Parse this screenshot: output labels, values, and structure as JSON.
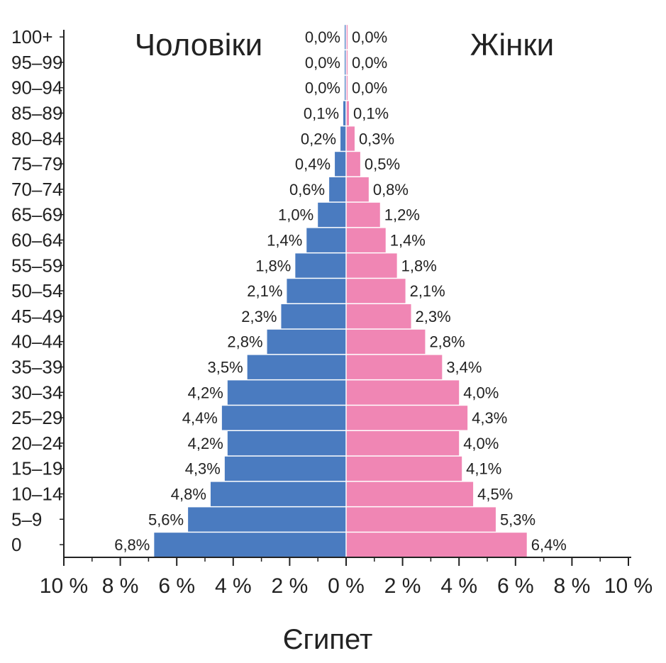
{
  "chart_data": {
    "type": "bar",
    "orientation": "horizontal-population-pyramid",
    "title": "Єгипет",
    "left_label": "Чоловіки",
    "right_label": "Жінки",
    "tick_labels": [
      "10 %",
      "8 %",
      "6 %",
      "4 %",
      "2 %",
      "0 %",
      "2 %",
      "4 %",
      "6 %",
      "8 %",
      "10 %"
    ],
    "xlim": [
      -10,
      10
    ],
    "categories": [
      "0",
      "5–9",
      "10–14",
      "15–19",
      "20–24",
      "25–29",
      "30–34",
      "35–39",
      "40–44",
      "45–49",
      "50–54",
      "55–59",
      "60–64",
      "65–69",
      "70–74",
      "75–79",
      "80–84",
      "85–89",
      "90–94",
      "95–99",
      "100+"
    ],
    "series": [
      {
        "name": "Чоловіки",
        "color": "#4a7bc0",
        "values": [
          6.8,
          5.6,
          4.8,
          4.3,
          4.2,
          4.4,
          4.2,
          3.5,
          2.8,
          2.3,
          2.1,
          1.8,
          1.4,
          1.0,
          0.6,
          0.4,
          0.2,
          0.1,
          0.0,
          0.0,
          0.0
        ],
        "labels": [
          "6,8%",
          "5,6%",
          "4,8%",
          "4,3%",
          "4,2%",
          "4,4%",
          "4,2%",
          "3,5%",
          "2,8%",
          "2,3%",
          "2,1%",
          "1,8%",
          "1,4%",
          "1,0%",
          "0,6%",
          "0,4%",
          "0,2%",
          "0,1%",
          "0,0%",
          "0,0%",
          "0,0%"
        ]
      },
      {
        "name": "Жінки",
        "color": "#f086b4",
        "values": [
          6.4,
          5.3,
          4.5,
          4.1,
          4.0,
          4.3,
          4.0,
          3.4,
          2.8,
          2.3,
          2.1,
          1.8,
          1.4,
          1.2,
          0.8,
          0.5,
          0.3,
          0.1,
          0.0,
          0.0,
          0.0
        ],
        "labels": [
          "6,4%",
          "5,3%",
          "4,5%",
          "4,1%",
          "4,0%",
          "4,3%",
          "4,0%",
          "3,4%",
          "2,8%",
          "2,3%",
          "2,1%",
          "1,8%",
          "1,4%",
          "1,2%",
          "0,8%",
          "0,5%",
          "0,3%",
          "0,1%",
          "0,0%",
          "0,0%",
          "0,0%"
        ]
      }
    ],
    "grid": false
  }
}
